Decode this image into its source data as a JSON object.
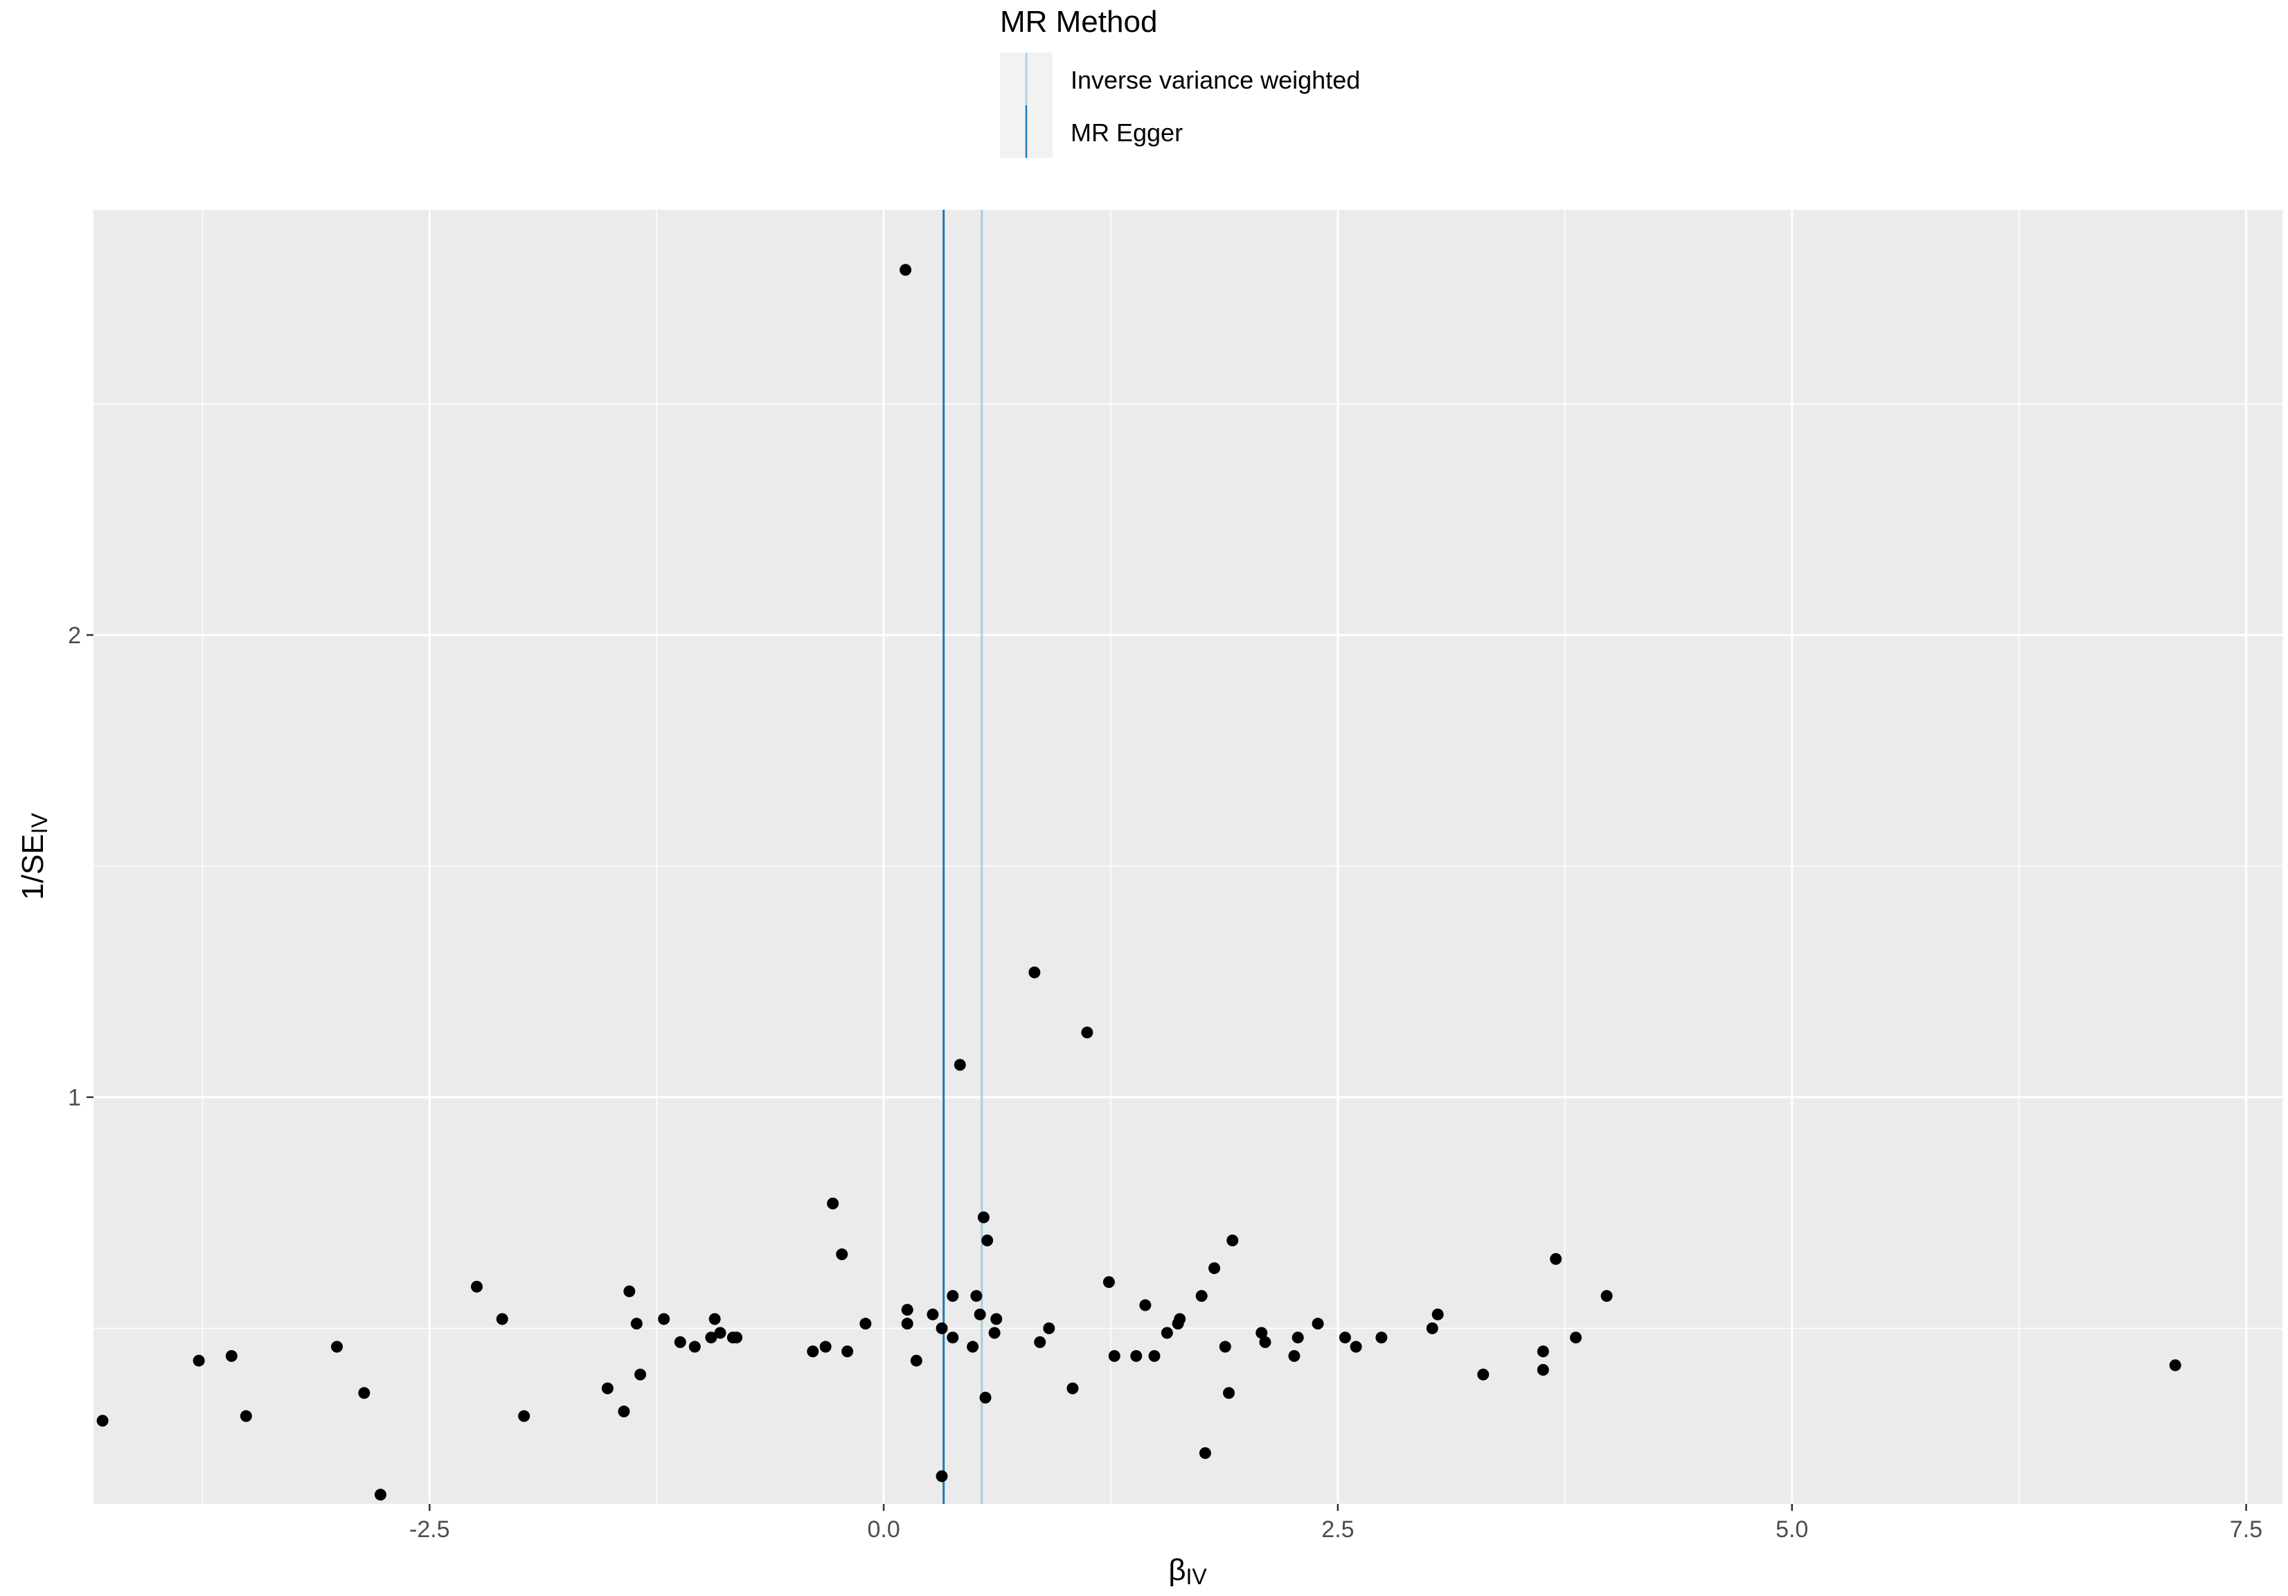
{
  "chart_data": {
    "type": "scatter",
    "title": "",
    "xlabel": {
      "main": "β",
      "sub": "IV"
    },
    "ylabel": {
      "main": "1/SE",
      "sub": "IV"
    },
    "xlim": [
      -4.35,
      7.7
    ],
    "ylim": [
      0.12,
      2.92
    ],
    "x_ticks": [
      -2.5,
      0.0,
      2.5,
      5.0,
      7.5
    ],
    "x_tick_labels": [
      "-2.5",
      "0.0",
      "2.5",
      "5.0",
      "7.5"
    ],
    "x_minor_ticks": [
      -3.75,
      -1.25,
      1.25,
      3.75,
      6.25
    ],
    "y_ticks": [
      1,
      2
    ],
    "y_tick_labels": [
      "1",
      "2"
    ],
    "y_minor_ticks": [
      0.5,
      1.5,
      2.5
    ],
    "grid": true,
    "background": "#ebebeb",
    "point_color": "#000000",
    "legend": {
      "title": "MR Method",
      "position": "top",
      "entries": [
        {
          "label": "Inverse variance weighted",
          "color": "#a6cee3"
        },
        {
          "label": "MR Egger",
          "color": "#1f78b4"
        }
      ]
    },
    "vlines": [
      {
        "name": "Inverse variance weighted",
        "x": 0.54,
        "color": "#a6cee3"
      },
      {
        "name": "MR Egger",
        "x": 0.33,
        "color": "#1f78b4"
      }
    ],
    "points": [
      {
        "x": 0.12,
        "y": 2.79
      },
      {
        "x": 0.83,
        "y": 1.27
      },
      {
        "x": 1.12,
        "y": 1.14
      },
      {
        "x": 0.42,
        "y": 1.07
      },
      {
        "x": -0.28,
        "y": 0.77
      },
      {
        "x": 0.55,
        "y": 0.74
      },
      {
        "x": -0.23,
        "y": 0.66
      },
      {
        "x": 0.57,
        "y": 0.69
      },
      {
        "x": 1.92,
        "y": 0.69
      },
      {
        "x": 3.7,
        "y": 0.65
      },
      {
        "x": 1.82,
        "y": 0.63
      },
      {
        "x": -2.24,
        "y": 0.59
      },
      {
        "x": 1.24,
        "y": 0.6
      },
      {
        "x": -1.4,
        "y": 0.58
      },
      {
        "x": 3.98,
        "y": 0.57
      },
      {
        "x": 1.75,
        "y": 0.57
      },
      {
        "x": 0.38,
        "y": 0.57
      },
      {
        "x": 0.51,
        "y": 0.57
      },
      {
        "x": 1.44,
        "y": 0.55
      },
      {
        "x": 0.13,
        "y": 0.54
      },
      {
        "x": 0.53,
        "y": 0.53
      },
      {
        "x": 0.27,
        "y": 0.53
      },
      {
        "x": -2.1,
        "y": 0.52
      },
      {
        "x": -1.21,
        "y": 0.52
      },
      {
        "x": -0.93,
        "y": 0.52
      },
      {
        "x": 3.05,
        "y": 0.53
      },
      {
        "x": 0.62,
        "y": 0.52
      },
      {
        "x": 1.63,
        "y": 0.52
      },
      {
        "x": -0.1,
        "y": 0.51
      },
      {
        "x": 0.13,
        "y": 0.51
      },
      {
        "x": 0.32,
        "y": 0.5
      },
      {
        "x": 1.62,
        "y": 0.51
      },
      {
        "x": 2.39,
        "y": 0.51
      },
      {
        "x": -1.36,
        "y": 0.51
      },
      {
        "x": 3.02,
        "y": 0.5
      },
      {
        "x": 0.91,
        "y": 0.5
      },
      {
        "x": 1.56,
        "y": 0.49
      },
      {
        "x": 0.61,
        "y": 0.49
      },
      {
        "x": -0.9,
        "y": 0.49
      },
      {
        "x": -0.95,
        "y": 0.48
      },
      {
        "x": 2.08,
        "y": 0.49
      },
      {
        "x": 2.74,
        "y": 0.48
      },
      {
        "x": -0.83,
        "y": 0.48
      },
      {
        "x": -0.81,
        "y": 0.48
      },
      {
        "x": 0.38,
        "y": 0.48
      },
      {
        "x": 2.54,
        "y": 0.48
      },
      {
        "x": 2.28,
        "y": 0.48
      },
      {
        "x": 3.81,
        "y": 0.48
      },
      {
        "x": 0.86,
        "y": 0.47
      },
      {
        "x": 2.1,
        "y": 0.47
      },
      {
        "x": -1.12,
        "y": 0.47
      },
      {
        "x": -3.01,
        "y": 0.46
      },
      {
        "x": -0.32,
        "y": 0.46
      },
      {
        "x": -1.04,
        "y": 0.46
      },
      {
        "x": 0.49,
        "y": 0.46
      },
      {
        "x": 1.88,
        "y": 0.46
      },
      {
        "x": 2.6,
        "y": 0.46
      },
      {
        "x": -0.39,
        "y": 0.45
      },
      {
        "x": -0.2,
        "y": 0.45
      },
      {
        "x": 3.63,
        "y": 0.45
      },
      {
        "x": -3.59,
        "y": 0.44
      },
      {
        "x": 1.27,
        "y": 0.44
      },
      {
        "x": 1.39,
        "y": 0.44
      },
      {
        "x": 1.49,
        "y": 0.44
      },
      {
        "x": 2.26,
        "y": 0.44
      },
      {
        "x": -3.77,
        "y": 0.43
      },
      {
        "x": 0.18,
        "y": 0.43
      },
      {
        "x": 7.11,
        "y": 0.42
      },
      {
        "x": 3.63,
        "y": 0.41
      },
      {
        "x": -1.34,
        "y": 0.4
      },
      {
        "x": 3.3,
        "y": 0.4
      },
      {
        "x": -1.52,
        "y": 0.37
      },
      {
        "x": 1.04,
        "y": 0.37
      },
      {
        "x": -2.86,
        "y": 0.36
      },
      {
        "x": 1.9,
        "y": 0.36
      },
      {
        "x": 0.56,
        "y": 0.35
      },
      {
        "x": -1.43,
        "y": 0.32
      },
      {
        "x": -3.51,
        "y": 0.31
      },
      {
        "x": -1.98,
        "y": 0.31
      },
      {
        "x": -4.3,
        "y": 0.3
      },
      {
        "x": 1.77,
        "y": 0.23
      },
      {
        "x": 0.32,
        "y": 0.18
      },
      {
        "x": -2.77,
        "y": 0.14
      }
    ]
  }
}
